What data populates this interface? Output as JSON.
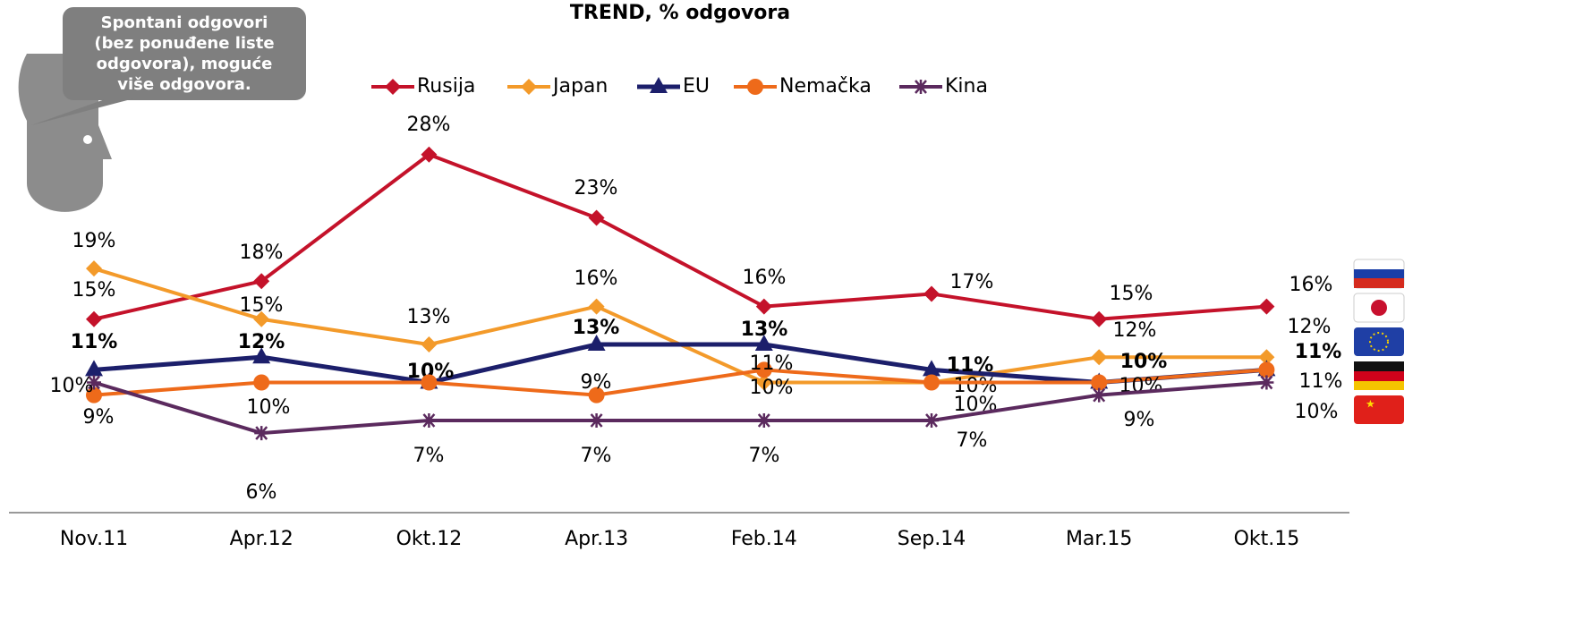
{
  "chart_data": {
    "type": "line",
    "title": "TREND, % odgovora",
    "annotation": [
      "Spontani odgovori",
      "(bez ponuđene liste",
      "odgovora), moguće",
      "više odgovora."
    ],
    "categories": [
      "Nov.11",
      "Apr.12",
      "Okt.12",
      "Apr.13",
      "Feb.14",
      "Sep.14",
      "Mar.15",
      "Okt.15"
    ],
    "series": [
      {
        "name": "Rusija",
        "color": "#c4122a",
        "marker": "diamond",
        "values": [
          15,
          18,
          28,
          23,
          16,
          17,
          15,
          16
        ],
        "value_labels": [
          "15%",
          "18%",
          "28%",
          "23%",
          "16%",
          "17%",
          "15%",
          "16%"
        ]
      },
      {
        "name": "Japan",
        "color": "#f39a2a",
        "marker": "diamond",
        "values": [
          19,
          15,
          13,
          16,
          10,
          10,
          12,
          12
        ],
        "value_labels": [
          "19%",
          "15%",
          "13%",
          "16%",
          "10%",
          "10%",
          "12%",
          "12%"
        ]
      },
      {
        "name": "EU",
        "color": "#1c1f6b",
        "marker": "triangle",
        "values": [
          11,
          12,
          10,
          13,
          13,
          11,
          10,
          11
        ],
        "value_labels": [
          "11%",
          "12%",
          "10%",
          "13%",
          "13%",
          "11%",
          "10%",
          "11%"
        ]
      },
      {
        "name": "Nemačka",
        "color": "#ee6a1a",
        "marker": "circle",
        "values": [
          9,
          10,
          10,
          9,
          11,
          10,
          10,
          11
        ],
        "value_labels": [
          "9%",
          "10%",
          null,
          "9%",
          "11%",
          "10%",
          "10%",
          "11%"
        ]
      },
      {
        "name": "Kina",
        "color": "#5b2a5e",
        "marker": "star",
        "values": [
          10,
          6,
          7,
          7,
          7,
          7,
          9,
          10
        ],
        "value_labels": [
          "10%",
          "6%",
          "7%",
          "7%",
          "7%",
          "7%",
          "9%",
          "10%"
        ]
      }
    ],
    "legend": "top"
  }
}
